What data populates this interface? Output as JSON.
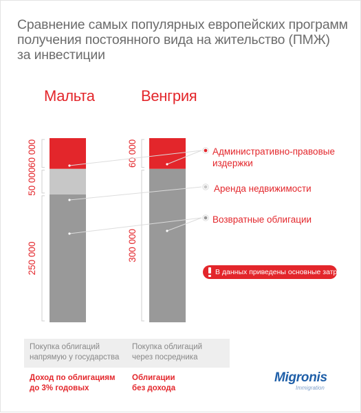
{
  "title_lines": [
    "Сравнение самых популярных европейских программ",
    "получения постоянного вида на жительство (ПМЖ)",
    "за инвестиции"
  ],
  "legend": [
    {
      "label_lines": [
        "Административно-правовые",
        "издержки"
      ],
      "color": "#e3262b"
    },
    {
      "label_lines": [
        "Аренда недвижимости"
      ],
      "color": "#c7c7c7"
    },
    {
      "label_lines": [
        "Возвратные облигации"
      ],
      "color": "#999999"
    }
  ],
  "note": {
    "text": "В данных приведены основные затраты",
    "icon": "exclamation-icon"
  },
  "columns": [
    {
      "box_lines": [
        "Покупка облигаций",
        "напрямую у государства"
      ],
      "income_lines": [
        "Доход по облигациям",
        "до 3% годовых"
      ]
    },
    {
      "box_lines": [
        "Покупка облигаций",
        "через посредника"
      ],
      "income_lines": [
        "Облигации",
        "без дохода"
      ]
    }
  ],
  "logo": {
    "main": "Migronis",
    "sub": "Immigration",
    "color": "#1f5fa8"
  },
  "chart_data": {
    "type": "bar",
    "stacked": true,
    "categories": [
      "Мальта",
      "Венгрия"
    ],
    "series": [
      {
        "name": "Возвратные облигации",
        "values": [
          250000,
          300000
        ],
        "color": "#999999",
        "value_labels": [
          "250 000",
          "300 000"
        ]
      },
      {
        "name": "Аренда недвижимости",
        "values": [
          50000,
          0
        ],
        "color": "#c7c7c7",
        "value_labels": [
          "50 000",
          ""
        ]
      },
      {
        "name": "Административно-правовые издержки",
        "values": [
          60000,
          60000
        ],
        "color": "#e3262b",
        "value_labels": [
          "60 000",
          "60 000"
        ]
      }
    ],
    "grid": false,
    "legend_position": "right"
  }
}
